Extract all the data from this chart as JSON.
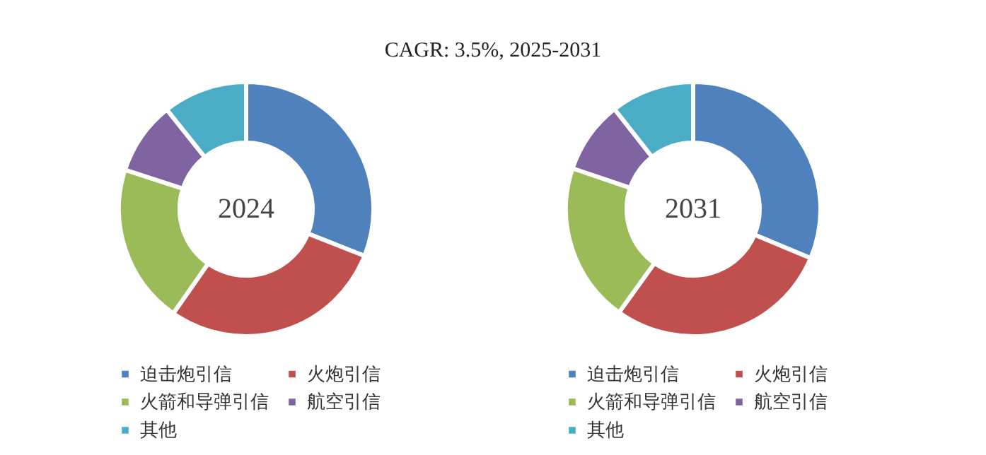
{
  "chart_data": [
    {
      "type": "donut",
      "title": "CAGR:  3.5%, 2025-2031",
      "annotations": [
        "2024"
      ],
      "categories": [
        "迫击炮引信",
        "火炮引信",
        "火箭和导弹引信",
        "航空引信",
        "其他"
      ],
      "values": [
        31,
        28.7,
        20.3,
        9.3,
        10.7
      ],
      "colors": [
        "#4f81bd",
        "#c0504d",
        "#9bbb59",
        "#8064a2",
        "#4bacc6"
      ],
      "legend": "bottom"
    },
    {
      "type": "donut",
      "annotations": [
        "2031"
      ],
      "categories": [
        "迫击炮引信",
        "火炮引信",
        "火箭和导弹引信",
        "航空引信",
        "其他"
      ],
      "values": [
        31.3,
        28.6,
        20.3,
        9.2,
        10.6
      ],
      "colors": [
        "#4f81bd",
        "#c0504d",
        "#9bbb59",
        "#8064a2",
        "#4bacc6"
      ],
      "legend": "bottom"
    }
  ]
}
